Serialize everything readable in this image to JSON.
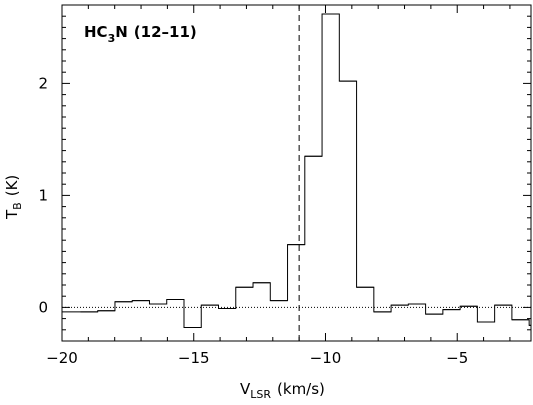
{
  "chart_data": {
    "type": "line",
    "style": "histogram-step",
    "title": {
      "species": "HC",
      "subscript": "3",
      "species_end": "N",
      "transition": "(12–11)"
    },
    "xlabel": {
      "main": "V",
      "sub": "LSR",
      "unit": "(km/s)"
    },
    "ylabel": {
      "main": "T",
      "sub": "B",
      "unit": "(K)"
    },
    "xlim": [
      -20,
      -2.2
    ],
    "ylim": [
      -0.3,
      2.7
    ],
    "x_ticks": [
      -20,
      -15,
      -10,
      -5
    ],
    "x_tick_labels": [
      "−20",
      "−15",
      "−10",
      "−5"
    ],
    "y_ticks": [
      0,
      1,
      2
    ],
    "y_tick_labels": [
      "0",
      "1",
      "2"
    ],
    "bin_width": 0.655,
    "bins": {
      "x_start": -19.3,
      "values": [
        -0.04,
        -0.03,
        0.05,
        0.06,
        0.03,
        0.07,
        -0.18,
        0.02,
        -0.01,
        0.18,
        0.22,
        0.06,
        0.56,
        1.35,
        2.62,
        2.02,
        0.18,
        -0.04,
        0.02,
        0.03,
        -0.06,
        -0.02,
        0.01,
        -0.13,
        0.02,
        -0.11,
        -0.16
      ]
    },
    "reference_line_x": -11.0,
    "baseline_y": 0,
    "colors": {
      "spectrum": "#000000",
      "axes": "#000000",
      "baseline": "#000000",
      "reference": "#000000"
    }
  }
}
